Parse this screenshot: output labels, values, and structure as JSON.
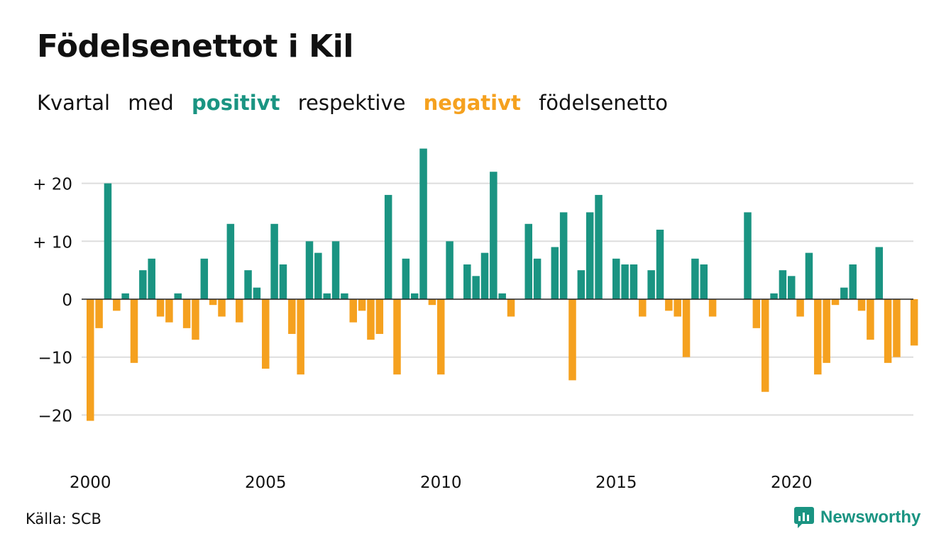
{
  "title": "Födelsenettot i Kil",
  "subtitle": {
    "w1": "Kvartal",
    "w2": "med",
    "positive": "positivt",
    "w3": "respektive",
    "negative": "negativt",
    "w4": "födelsenetto"
  },
  "colors": {
    "positive": "#1a9482",
    "negative": "#f5a11f",
    "grid": "#dddddd"
  },
  "source": "Källa: SCB",
  "brand": "Newsworthy",
  "chart_data": {
    "type": "bar",
    "x_start_year": 2000,
    "x_ticks": [
      "2000",
      "2005",
      "2010",
      "2015",
      "2020"
    ],
    "y_ticks": [
      {
        "value": 20,
        "label": "+ 20"
      },
      {
        "value": 10,
        "label": "+ 10"
      },
      {
        "value": 0,
        "label": "0"
      },
      {
        "value": -10,
        "label": "−10"
      },
      {
        "value": -20,
        "label": "−20"
      }
    ],
    "ylim": [
      -25,
      26
    ],
    "values": [
      -21,
      -5,
      20,
      -2,
      1,
      -11,
      5,
      7,
      -3,
      -4,
      1,
      -5,
      -7,
      7,
      -1,
      -3,
      13,
      -4,
      5,
      2,
      -12,
      13,
      6,
      -6,
      -13,
      10,
      8,
      1,
      10,
      1,
      -4,
      -2,
      -7,
      -6,
      18,
      -13,
      7,
      1,
      26,
      -1,
      -13,
      10,
      0,
      6,
      4,
      8,
      22,
      1,
      -3,
      0,
      13,
      7,
      0,
      9,
      15,
      -14,
      5,
      15,
      18,
      0,
      7,
      6,
      6,
      -3,
      5,
      12,
      -2,
      -3,
      -10,
      7,
      6,
      -3,
      0,
      0,
      0,
      15,
      -5,
      -16,
      1,
      5,
      4,
      -3,
      8,
      -13,
      -11,
      -1,
      2,
      6,
      -2,
      -7,
      9,
      -11,
      -10,
      0,
      -8
    ]
  }
}
